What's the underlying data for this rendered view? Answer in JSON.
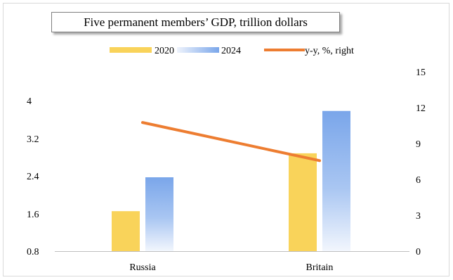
{
  "chart_data": {
    "type": "bar",
    "title": "Five permanent members’ GDP, trillion dollars",
    "categories": [
      "Russia",
      "Britain"
    ],
    "series": [
      {
        "name": "2020",
        "kind": "bar",
        "axis": "left",
        "values": [
          1.65,
          2.88
        ],
        "color": "#f9d35a"
      },
      {
        "name": "2024",
        "kind": "bar",
        "axis": "left",
        "values": [
          2.37,
          3.78
        ],
        "color": "#7aa6ea"
      },
      {
        "name": "y-y, %, right",
        "kind": "line",
        "axis": "right",
        "values": [
          10.8,
          7.6
        ],
        "color": "#ed7d31"
      }
    ],
    "y_left": {
      "min": 0.8,
      "max": 4.0,
      "ticks": [
        "0.8",
        "1.6",
        "2.4",
        "3.2",
        "4"
      ]
    },
    "y_right": {
      "min": 0,
      "max": 15,
      "ticks": [
        "0",
        "3",
        "6",
        "9",
        "12",
        "15"
      ]
    },
    "legend_position": "top",
    "grid": false
  }
}
